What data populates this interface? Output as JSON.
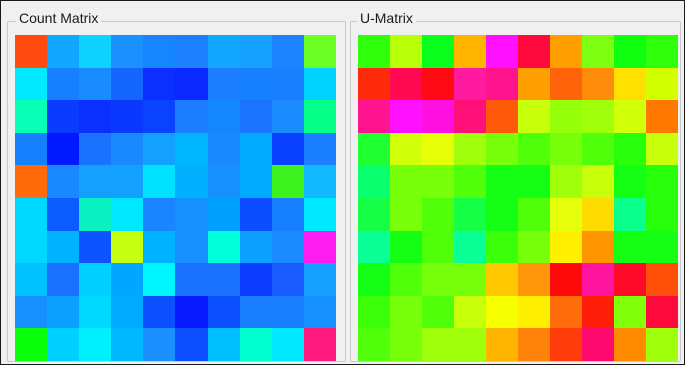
{
  "panels": {
    "count": {
      "title": "Count Matrix",
      "cells": [
        [
          "#ff4a10",
          "#11a6ff",
          "#0fd3ff",
          "#1b90ff",
          "#1685ff",
          "#1c80ff",
          "#11a6ff",
          "#16a0ff",
          "#1c82ff",
          "#6bff25"
        ],
        [
          "#00e9ff",
          "#1680ff",
          "#1a8cff",
          "#1466ff",
          "#0b2fff",
          "#0a28ff",
          "#1c7eff",
          "#1680ff",
          "#1a7fff",
          "#00d2ff"
        ],
        [
          "#08ffb6",
          "#0a3bff",
          "#0a30ff",
          "#0a38ff",
          "#0a43ff",
          "#1c7dff",
          "#1688ff",
          "#1a74ff",
          "#1a8cff",
          "#06ff87"
        ],
        [
          "#1680ff",
          "#0019ff",
          "#1a73ff",
          "#1a88ff",
          "#13a0ff",
          "#00b5ff",
          "#1a88ff",
          "#00aaff",
          "#0a40ff",
          "#1a80ff"
        ],
        [
          "#ff6a0a",
          "#1a88ff",
          "#13a0ff",
          "#13a0ff",
          "#00e2ff",
          "#00b0ff",
          "#1690ff",
          "#00aaff",
          "#3ef21f",
          "#12b9ff"
        ],
        [
          "#00d9ff",
          "#0c5bff",
          "#09f1c0",
          "#00e8ff",
          "#1a85ff",
          "#1690ff",
          "#00a0ff",
          "#0c4eff",
          "#1680ff",
          "#00e8ff"
        ],
        [
          "#00d8ff",
          "#00b2ff",
          "#0c52ff",
          "#c7ff10",
          "#00b2ff",
          "#1690ff",
          "#00ffd8",
          "#0ca0ff",
          "#1a8cff",
          "#ff1cf0"
        ],
        [
          "#00c2ff",
          "#1a70ff",
          "#00d0ff",
          "#00a6ff",
          "#00f5ff",
          "#1a70ff",
          "#1a70ff",
          "#0c3cff",
          "#1a5cff",
          "#16a0ff"
        ],
        [
          "#1690ff",
          "#0ca0ff",
          "#00d8ff",
          "#00aaff",
          "#0c50ff",
          "#0a1cff",
          "#0c50ff",
          "#1a80ff",
          "#1a80ff",
          "#1690ff"
        ],
        [
          "#0aff0a",
          "#00d0ff",
          "#00f0ff",
          "#00b8ff",
          "#1a90ff",
          "#0c50ff",
          "#00c0ff",
          "#00ffd0",
          "#00e8ff",
          "#ff1a80"
        ]
      ]
    },
    "umatrix": {
      "title": "U-Matrix",
      "cells": [
        [
          "#2fff0a",
          "#b8ff0a",
          "#0aff1c",
          "#ffb400",
          "#ff10ff",
          "#ff0a3c",
          "#ffa000",
          "#7cff10",
          "#10ff10",
          "#2fff0a"
        ],
        [
          "#ff2a0a",
          "#ff0a50",
          "#ff0a14",
          "#ff1aa0",
          "#ff1490",
          "#ffa000",
          "#ff640a",
          "#ff8c0a",
          "#ffe000",
          "#d2ff00"
        ],
        [
          "#ff1490",
          "#ff10ff",
          "#ff10e0",
          "#ff1078",
          "#ff5a0a",
          "#c8ff0a",
          "#96ff0a",
          "#a0ff0a",
          "#d2ff0a",
          "#ff7800"
        ],
        [
          "#20ff30",
          "#d2ff0a",
          "#e8ff0a",
          "#a0ff0a",
          "#78ff0a",
          "#50ff0a",
          "#78ff0a",
          "#50ff0a",
          "#28ff0a",
          "#c8ff0a"
        ],
        [
          "#0aff6e",
          "#78ff0a",
          "#78ff0a",
          "#50ff0a",
          "#14ff14",
          "#14ff14",
          "#a0ff0a",
          "#c8ff0a",
          "#14ff14",
          "#28ff0a"
        ],
        [
          "#14ff46",
          "#78ff0a",
          "#50ff0a",
          "#14ff46",
          "#14ff14",
          "#50ff0a",
          "#e6ff0a",
          "#ffdc00",
          "#0aff8c",
          "#28ff0a"
        ],
        [
          "#0aff96",
          "#14ff14",
          "#50ff0a",
          "#0aff96",
          "#3cff0a",
          "#78ff0a",
          "#fff000",
          "#ff9600",
          "#14ff14",
          "#14ff14"
        ],
        [
          "#14ff14",
          "#50ff0a",
          "#78ff0a",
          "#78ff0a",
          "#ffc800",
          "#ff960a",
          "#ff0a0a",
          "#ff14a0",
          "#ff0a28",
          "#ff500a"
        ],
        [
          "#3cff0a",
          "#78ff0a",
          "#50ff0a",
          "#c8ff0a",
          "#f5ff00",
          "#fff000",
          "#ff6e0a",
          "#ff1e0a",
          "#82ff0a",
          "#ff0a3c"
        ],
        [
          "#50ff0a",
          "#78ff0a",
          "#a0ff0a",
          "#a0ff0a",
          "#ffb400",
          "#ff820a",
          "#ff3c0a",
          "#ff0a6e",
          "#ff8c00",
          "#a0ff0a"
        ]
      ]
    }
  }
}
